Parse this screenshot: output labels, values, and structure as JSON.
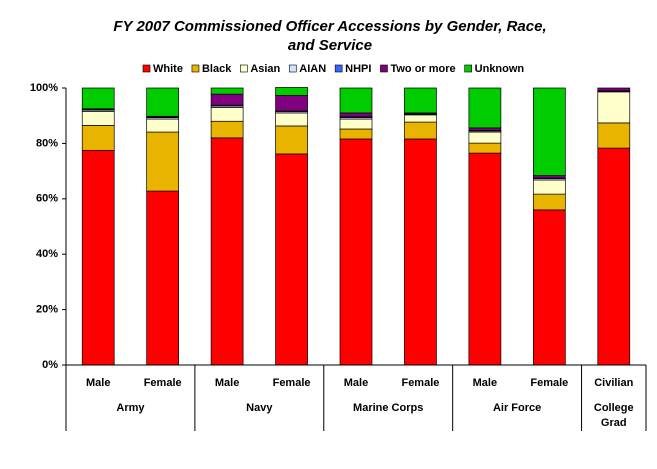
{
  "chart_data": {
    "type": "stacked_bar",
    "title": [
      "FY 2007 Commissioned Officer Accessions by Gender, Race,",
      "and Service"
    ],
    "groups": [
      {
        "label": "Army",
        "members": [
          "Male",
          "Female"
        ]
      },
      {
        "label": "Navy",
        "members": [
          "Male",
          "Female"
        ]
      },
      {
        "label": "Marine Corps",
        "members": [
          "Male",
          "Female"
        ]
      },
      {
        "label": "Air Force",
        "members": [
          "Male",
          "Female"
        ]
      },
      {
        "label": "College Grad",
        "members": [
          "Civilian"
        ]
      }
    ],
    "series": [
      {
        "name": "White",
        "color": "#ff0000",
        "values": [
          77.5,
          62.8,
          82,
          76.2,
          81.6,
          81.6,
          76.5,
          56,
          78.3
        ]
      },
      {
        "name": "Black",
        "color": "#e8b400",
        "values": [
          9,
          21.3,
          6,
          10.1,
          3.6,
          6.1,
          3.6,
          5.7,
          9.1
        ]
      },
      {
        "name": "Asian",
        "color": "#ffffcc",
        "values": [
          5,
          4.7,
          5,
          4.7,
          3.6,
          2.6,
          4,
          5.1,
          11.2
        ]
      },
      {
        "name": "AIAN",
        "color": "#cce6ff",
        "values": [
          0.5,
          0.5,
          0.5,
          0.5,
          0.5,
          0.3,
          0.4,
          0.5,
          0.3
        ]
      },
      {
        "name": "NHPI",
        "color": "#3366ff",
        "values": [
          0.2,
          0.2,
          0.3,
          0.2,
          0.3,
          0.1,
          0.2,
          0.2,
          0.1
        ]
      },
      {
        "name": "Two or more",
        "color": "#800080",
        "values": [
          0.3,
          0.3,
          4,
          5.6,
          1.4,
          0.3,
          0.9,
          0.9,
          1
        ]
      },
      {
        "name": "Unknown",
        "color": "#00cc00",
        "values": [
          7.5,
          10.2,
          2.2,
          2.9,
          9,
          9,
          14.4,
          31.6,
          0
        ]
      }
    ],
    "ylim": [
      0,
      100
    ],
    "yticks": [
      {
        "value": 0,
        "label": "0%"
      },
      {
        "value": 20,
        "label": "20%"
      },
      {
        "value": 40,
        "label": "40%"
      },
      {
        "value": 60,
        "label": "60%"
      },
      {
        "value": 80,
        "label": "80%"
      },
      {
        "value": 100,
        "label": "100%"
      }
    ]
  }
}
